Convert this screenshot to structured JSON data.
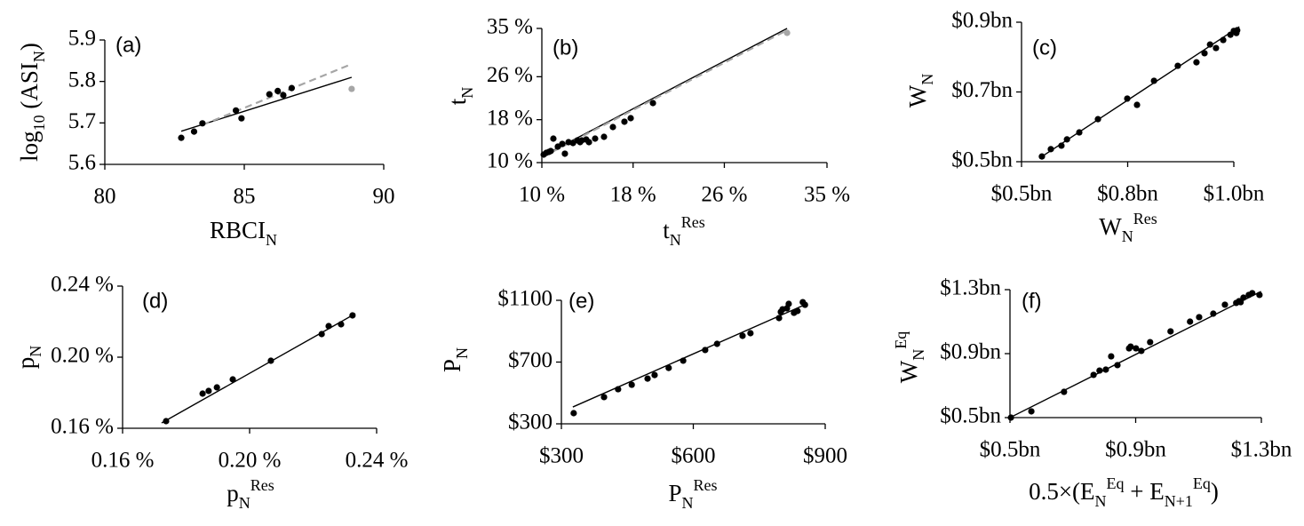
{
  "chart_data": [
    {
      "type": "scatter",
      "panel_label": "(a)",
      "xlabel": [
        {
          "text": "RBCI"
        },
        {
          "text": "N",
          "pos": "sub"
        }
      ],
      "ylabel": [
        {
          "text": "log"
        },
        {
          "text": "10",
          "pos": "sub"
        },
        {
          "text": " (ASI"
        },
        {
          "text": "N",
          "pos": "sub"
        },
        {
          "text": ")"
        }
      ],
      "xlim": [
        80,
        90
      ],
      "ylim": [
        5.6,
        5.9
      ],
      "xticks": [
        80,
        85,
        90
      ],
      "yticks": [
        5.6,
        5.7,
        5.8,
        5.9
      ],
      "series": [
        {
          "color": "#000000",
          "x": [
            82.74,
            83.2,
            83.5,
            84.7,
            84.9,
            85.9,
            86.2,
            86.4,
            86.7
          ],
          "values": [
            5.664,
            5.679,
            5.699,
            5.73,
            5.711,
            5.769,
            5.777,
            5.767,
            5.784
          ]
        },
        {
          "color": "#a6a6a6",
          "x": [
            88.85
          ],
          "values": [
            5.782
          ]
        }
      ],
      "trendlines": [
        {
          "color": "#000000",
          "dashed": false,
          "x": [
            82.74,
            88.85
          ],
          "y": [
            5.68,
            5.81
          ]
        },
        {
          "color": "#a6a6a6",
          "dashed": true,
          "x": [
            83.5,
            88.85
          ],
          "y": [
            5.695,
            5.842
          ]
        }
      ]
    },
    {
      "type": "scatter",
      "panel_label": "(b)",
      "xlabel": [
        {
          "text": "t"
        },
        {
          "text": "N",
          "pos": "sub"
        },
        {
          "text": "Res",
          "pos": "sup"
        }
      ],
      "ylabel": [
        {
          "text": "t"
        },
        {
          "text": "N",
          "pos": "sub"
        }
      ],
      "xlim": [
        10,
        35
      ],
      "ylim": [
        10,
        35
      ],
      "xticks": [
        {
          "value": 10,
          "label": "10 %"
        },
        {
          "value": 18,
          "label": "18 %"
        },
        {
          "value": 26,
          "label": "26 %"
        },
        {
          "value": 35,
          "label": "35 %"
        }
      ],
      "yticks": [
        {
          "value": 10,
          "label": "10 %"
        },
        {
          "value": 18,
          "label": "18 %"
        },
        {
          "value": 26,
          "label": "26 %"
        },
        {
          "value": 35,
          "label": "35 %"
        }
      ],
      "series": [
        {
          "color": "#000000",
          "x": [
            10.16,
            10.39,
            10.62,
            10.78,
            11.01,
            11.4,
            11.79,
            12.02,
            12.34,
            12.73,
            13.12,
            13.35,
            13.5,
            13.89,
            14.13,
            14.67,
            15.45,
            16.23,
            17.24,
            17.79,
            19.74
          ],
          "values": [
            11.49,
            11.82,
            11.99,
            12.15,
            14.47,
            12.98,
            13.48,
            11.66,
            13.81,
            13.64,
            14.14,
            13.81,
            14.14,
            14.3,
            13.81,
            14.47,
            14.8,
            16.62,
            17.62,
            18.28,
            21.09
          ]
        },
        {
          "color": "#a6a6a6",
          "x": [
            31.5
          ],
          "values": [
            34.17
          ]
        }
      ],
      "trendlines": [
        {
          "color": "#000000",
          "dashed": false,
          "x": [
            10,
            31.5
          ],
          "y": [
            11.16,
            35
          ]
        },
        {
          "color": "#a6a6a6",
          "dashed": true,
          "x": [
            10,
            31.5
          ],
          "y": [
            11.0,
            34.67
          ]
        }
      ]
    },
    {
      "type": "scatter",
      "panel_label": "(c)",
      "xlabel": [
        {
          "text": "W"
        },
        {
          "text": "N",
          "pos": "sub"
        },
        {
          "text": "Res",
          "pos": "sup"
        }
      ],
      "ylabel": [
        {
          "text": "W"
        },
        {
          "text": "N",
          "pos": "sub"
        }
      ],
      "xlim": [
        0.5,
        1.0
      ],
      "ylim": [
        0.5,
        0.9
      ],
      "xticks": [
        {
          "value": 0.5,
          "label": "$0.5bn"
        },
        {
          "value": 0.75,
          "label": "$0.8bn"
        },
        {
          "value": 1.0,
          "label": "$1.0bn"
        }
      ],
      "yticks": [
        {
          "value": 0.5,
          "label": "$0.5bn"
        },
        {
          "value": 0.7,
          "label": "$0.7bn"
        },
        {
          "value": 0.9,
          "label": "$0.9bn"
        }
      ],
      "series": [
        {
          "color": "#000000",
          "x": [
            0.548,
            0.569,
            0.594,
            0.607,
            0.636,
            0.68,
            0.749,
            0.772,
            0.812,
            0.868,
            0.912,
            0.931,
            0.944,
            0.958,
            0.975,
            0.992,
            1.0,
            1.006,
            1.008
          ],
          "values": [
            0.515,
            0.536,
            0.546,
            0.564,
            0.584,
            0.622,
            0.681,
            0.663,
            0.732,
            0.775,
            0.785,
            0.811,
            0.836,
            0.826,
            0.849,
            0.864,
            0.875,
            0.869,
            0.877
          ]
        }
      ],
      "trendlines": [
        {
          "color": "#000000",
          "dashed": false,
          "x": [
            0.542,
            1.013
          ],
          "y": [
            0.51,
            0.887
          ]
        }
      ]
    },
    {
      "type": "scatter",
      "panel_label": "(d)",
      "xlabel": [
        {
          "text": "p"
        },
        {
          "text": "N",
          "pos": "sub"
        },
        {
          "text": "Res",
          "pos": "sup"
        }
      ],
      "ylabel": [
        {
          "text": "p"
        },
        {
          "text": "N",
          "pos": "sub"
        }
      ],
      "xlim": [
        0.16,
        0.24
      ],
      "ylim": [
        0.16,
        0.24
      ],
      "xticks": [
        {
          "value": 0.16,
          "label": "0.16 %"
        },
        {
          "value": 0.2,
          "label": "0.20 %"
        },
        {
          "value": 0.24,
          "label": "0.24 %"
        }
      ],
      "yticks": [
        {
          "value": 0.16,
          "label": "0.16 %"
        },
        {
          "value": 0.2,
          "label": "0.20 %"
        },
        {
          "value": 0.24,
          "label": "0.24 %"
        }
      ],
      "series": [
        {
          "color": "#000000",
          "x": [
            0.1737,
            0.1852,
            0.1871,
            0.1897,
            0.1947,
            0.2067,
            0.2227,
            0.2249,
            0.2288,
            0.2324
          ],
          "values": [
            0.164,
            0.1795,
            0.181,
            0.183,
            0.1875,
            0.198,
            0.213,
            0.2175,
            0.2185,
            0.2235
          ]
        }
      ],
      "trendlines": [
        {
          "color": "#000000",
          "dashed": false,
          "x": [
            0.1723,
            0.2333
          ],
          "y": [
            0.163,
            0.2245
          ]
        }
      ]
    },
    {
      "type": "scatter",
      "panel_label": "(e)",
      "xlabel": [
        {
          "text": "P"
        },
        {
          "text": "N",
          "pos": "sub"
        },
        {
          "text": "Res",
          "pos": "sup"
        }
      ],
      "ylabel": [
        {
          "text": "P"
        },
        {
          "text": "N",
          "pos": "sub"
        }
      ],
      "xlim": [
        300,
        900
      ],
      "ylim": [
        300,
        1100
      ],
      "xticks": [
        {
          "value": 300,
          "label": "$300"
        },
        {
          "value": 600,
          "label": "$600"
        },
        {
          "value": 900,
          "label": "$900"
        }
      ],
      "yticks": [
        {
          "value": 300,
          "label": "$300"
        },
        {
          "value": 700,
          "label": "$700"
        },
        {
          "value": 1100,
          "label": "$1100"
        }
      ],
      "series": [
        {
          "color": "#000000",
          "x": [
            328,
            397,
            429,
            460,
            496,
            512,
            544,
            577,
            627,
            654,
            712,
            730,
            795,
            799,
            803,
            813,
            817,
            829,
            837,
            849,
            854
          ],
          "values": [
            369,
            473,
            524,
            553,
            593,
            616,
            662,
            709,
            778,
            818,
            870,
            887,
            985,
            1025,
            1042,
            1048,
            1077,
            1019,
            1031,
            1088,
            1071
          ]
        }
      ],
      "trendlines": [
        {
          "color": "#000000",
          "dashed": false,
          "x": [
            326,
            858
          ],
          "y": [
            409,
            1077
          ]
        }
      ]
    },
    {
      "type": "scatter",
      "panel_label": "(f)",
      "xlabel": [
        {
          "text": "0.5×(E"
        },
        {
          "text": "N",
          "pos": "sub"
        },
        {
          "text": "Eq",
          "pos": "sup"
        },
        {
          "text": " + E"
        },
        {
          "text": "N+1",
          "pos": "sub"
        },
        {
          "text": "Eq",
          "pos": "sup"
        },
        {
          "text": ")"
        }
      ],
      "ylabel": [
        {
          "text": "W"
        },
        {
          "text": "N",
          "pos": "sub"
        },
        {
          "text": "Eq",
          "pos": "sup"
        }
      ],
      "xlim": [
        0.5,
        1.3
      ],
      "ylim": [
        0.5,
        1.3
      ],
      "xticks": [
        {
          "value": 0.5,
          "label": "$0.5bn"
        },
        {
          "value": 0.9,
          "label": "$0.9bn"
        },
        {
          "value": 1.3,
          "label": "$1.3bn"
        }
      ],
      "yticks": [
        {
          "value": 0.5,
          "label": "$0.5bn"
        },
        {
          "value": 0.9,
          "label": "$0.9bn"
        },
        {
          "value": 1.3,
          "label": "$1.3bn"
        }
      ],
      "series": [
        {
          "color": "#000000",
          "x": [
            0.503,
            0.568,
            0.672,
            0.766,
            0.785,
            0.805,
            0.822,
            0.842,
            0.879,
            0.884,
            0.901,
            0.918,
            0.946,
            1.011,
            1.073,
            1.102,
            1.147,
            1.184,
            1.22,
            1.229,
            1.234,
            1.243,
            1.26,
            1.271,
            1.294
          ],
          "values": [
            0.5,
            0.539,
            0.661,
            0.767,
            0.794,
            0.8,
            0.883,
            0.828,
            0.933,
            0.944,
            0.933,
            0.917,
            0.972,
            1.039,
            1.1,
            1.128,
            1.15,
            1.206,
            1.217,
            1.228,
            1.222,
            1.25,
            1.267,
            1.278,
            1.267
          ]
        }
      ],
      "trendlines": [
        {
          "color": "#000000",
          "dashed": false,
          "x": [
            0.5,
            1.299
          ],
          "y": [
            0.5,
            1.289
          ]
        }
      ]
    }
  ]
}
